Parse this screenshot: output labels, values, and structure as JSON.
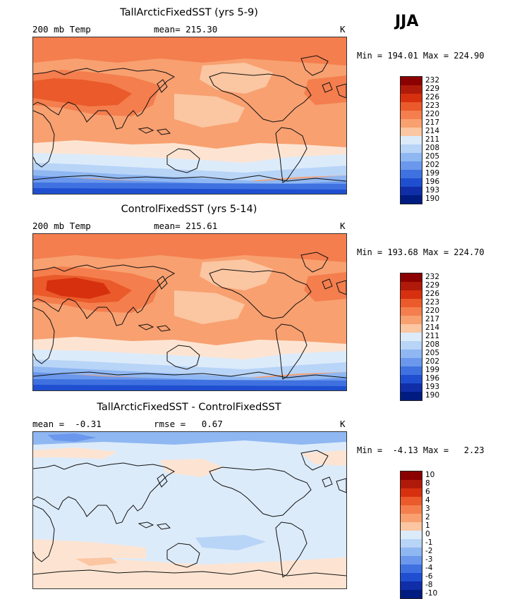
{
  "season": "JJA",
  "panels": [
    {
      "title": "TallArcticFixedSST (yrs 5-9)",
      "left_label": "200 mb Temp",
      "mid_label": "mean= 215.30",
      "unit": "K",
      "minmax": "Min = 194.01 Max = 224.90",
      "type": "abs",
      "levels": [
        "232",
        "229",
        "226",
        "223",
        "220",
        "217",
        "214",
        "211",
        "208",
        "205",
        "202",
        "199",
        "196",
        "193",
        "190"
      ]
    },
    {
      "title": "ControlFixedSST (yrs 5-14)",
      "left_label": "200 mb Temp",
      "mid_label": "mean= 215.61",
      "unit": "K",
      "minmax": "Min = 193.68 Max = 224.70",
      "type": "abs",
      "levels": [
        "232",
        "229",
        "226",
        "223",
        "220",
        "217",
        "214",
        "211",
        "208",
        "205",
        "202",
        "199",
        "196",
        "193",
        "190"
      ]
    },
    {
      "title": "TallArcticFixedSST - ControlFixedSST",
      "left_label": "mean =  -0.31",
      "mid_label": "rmse =   0.67",
      "unit": "K",
      "minmax": "Min =  -4.13 Max =   2.23",
      "type": "diff",
      "levels": [
        "10",
        "8",
        "6",
        "4",
        "3",
        "2",
        "1",
        "0",
        "-1",
        "-2",
        "-3",
        "-4",
        "-6",
        "-8",
        "-10"
      ]
    }
  ],
  "colors": {
    "scale": [
      "#8b0000",
      "#b01a0a",
      "#d6300f",
      "#ea5a2a",
      "#f47e4e",
      "#f8a070",
      "#fbc6a2",
      "#fde4d2",
      "#dcebfa",
      "#b8d4f7",
      "#8fb7f2",
      "#6b98ec",
      "#3f72e0",
      "#1f4fd0",
      "#0f2ea8",
      "#001c80"
    ]
  }
}
